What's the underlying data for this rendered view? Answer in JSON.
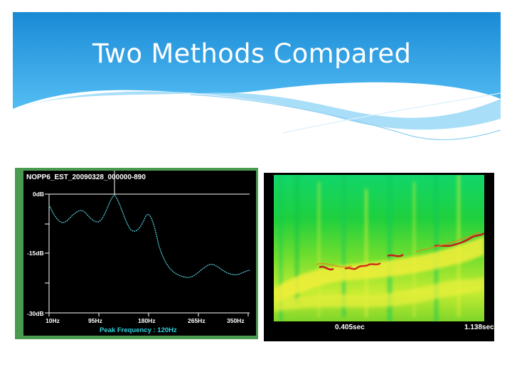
{
  "slide": {
    "title": "Two Methods Compared",
    "background_colors": {
      "header_top": "#1a8ad6",
      "header_bottom": "#53bdf3",
      "page": "#ffffff"
    }
  },
  "left_figure": {
    "title": "NOPP6_EST_20090328_000000-890",
    "y_tick_labels": [
      "0dB",
      "-15dB",
      "-30dB"
    ],
    "x_tick_labels": [
      "10Hz",
      "95Hz",
      "180Hz",
      "265Hz",
      "350Hz"
    ],
    "footer": "Peak Frequency : 120Hz",
    "frame_color": "#4a9a50",
    "curve_color": "#5ad8ea"
  },
  "right_figure": {
    "time_labels": [
      "0.405sec",
      "1.138sec"
    ],
    "colors": {
      "low": "#1fce4a",
      "mid": "#e6f23a",
      "high": "#e07a1a",
      "peak": "#c81a1a"
    }
  }
}
